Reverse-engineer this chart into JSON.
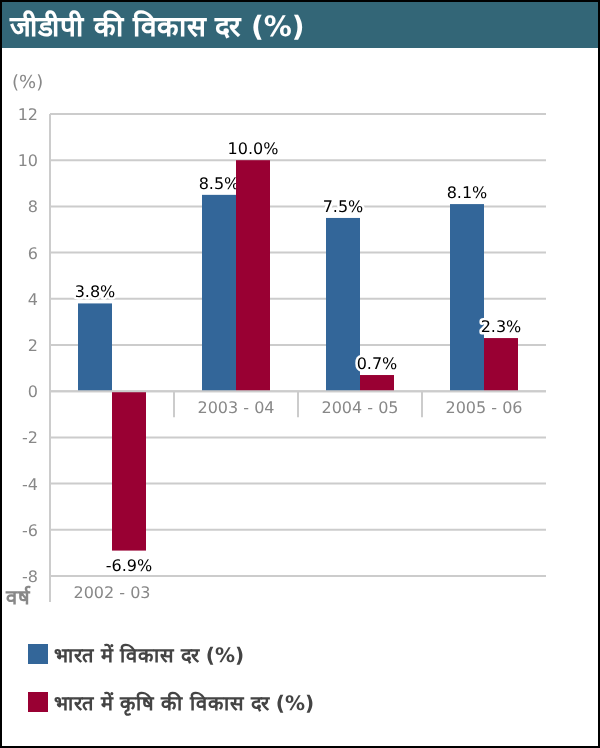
{
  "chart_data": {
    "type": "bar",
    "title": "जीडीपी की विकास दर (%)",
    "ylabel": "(%)",
    "xlabel": "वर्ष",
    "categories": [
      "2002 - 03",
      "2003 - 04",
      "2004 - 05",
      "2005 - 06"
    ],
    "series": [
      {
        "name": "भारत में विकास दर (%)",
        "color": "#336699",
        "values": [
          3.8,
          8.5,
          7.5,
          8.1
        ],
        "value_labels": [
          "3.8%",
          "8.5%",
          "7.5%",
          "8.1%"
        ]
      },
      {
        "name": "भारत में कृषि की विकास दर (%)",
        "color": "#990033",
        "values": [
          -6.9,
          10.0,
          0.7,
          2.3
        ],
        "value_labels": [
          "-6.9%",
          "10.0%",
          "0.7%",
          "2.3%"
        ]
      }
    ],
    "ylim": [
      -8,
      12
    ],
    "yticks": [
      -8,
      -6,
      -4,
      -2,
      0,
      2,
      4,
      6,
      8,
      10,
      12
    ],
    "grid": "y",
    "legend": "bottom"
  }
}
